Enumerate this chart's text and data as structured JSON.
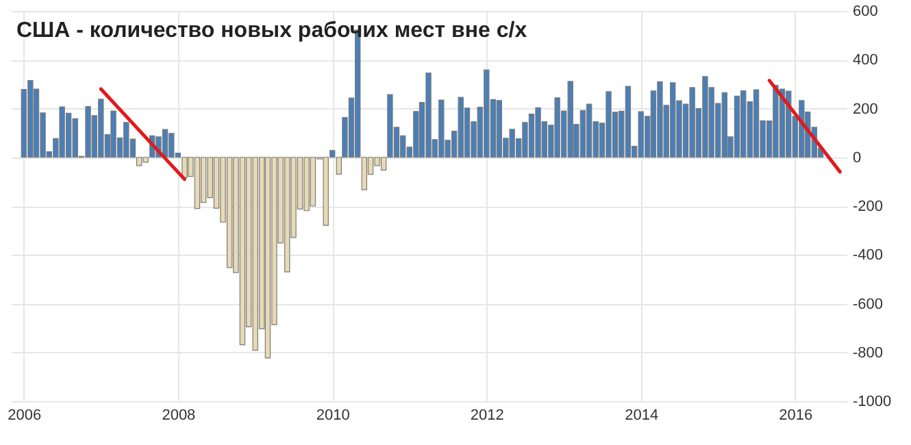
{
  "chart_data": {
    "type": "bar",
    "title": "США - количество новых рабочих мест вне с/х",
    "x": [
      "2006-01",
      "2006-02",
      "2006-03",
      "2006-04",
      "2006-05",
      "2006-06",
      "2006-07",
      "2006-08",
      "2006-09",
      "2006-10",
      "2006-11",
      "2006-12",
      "2007-01",
      "2007-02",
      "2007-03",
      "2007-04",
      "2007-05",
      "2007-06",
      "2007-07",
      "2007-08",
      "2007-09",
      "2007-10",
      "2007-11",
      "2007-12",
      "2008-01",
      "2008-02",
      "2008-03",
      "2008-04",
      "2008-05",
      "2008-06",
      "2008-07",
      "2008-08",
      "2008-09",
      "2008-10",
      "2008-11",
      "2008-12",
      "2009-01",
      "2009-02",
      "2009-03",
      "2009-04",
      "2009-05",
      "2009-06",
      "2009-07",
      "2009-08",
      "2009-09",
      "2009-10",
      "2009-11",
      "2009-12",
      "2010-01",
      "2010-02",
      "2010-03",
      "2010-04",
      "2010-05",
      "2010-06",
      "2010-07",
      "2010-08",
      "2010-09",
      "2010-10",
      "2010-11",
      "2010-12",
      "2011-01",
      "2011-02",
      "2011-03",
      "2011-04",
      "2011-05",
      "2011-06",
      "2011-07",
      "2011-08",
      "2011-09",
      "2011-10",
      "2011-11",
      "2011-12",
      "2012-01",
      "2012-02",
      "2012-03",
      "2012-04",
      "2012-05",
      "2012-06",
      "2012-07",
      "2012-08",
      "2012-09",
      "2012-10",
      "2012-11",
      "2012-12",
      "2013-01",
      "2013-02",
      "2013-03",
      "2013-04",
      "2013-05",
      "2013-06",
      "2013-07",
      "2013-08",
      "2013-09",
      "2013-10",
      "2013-11",
      "2013-12",
      "2014-01",
      "2014-02",
      "2014-03",
      "2014-04",
      "2014-05",
      "2014-06",
      "2014-07",
      "2014-08",
      "2014-09",
      "2014-10",
      "2014-11",
      "2014-12",
      "2015-01",
      "2015-02",
      "2015-03",
      "2015-04",
      "2015-05",
      "2015-06",
      "2015-07",
      "2015-08",
      "2015-09",
      "2015-10",
      "2015-11",
      "2015-12",
      "2016-01",
      "2016-02",
      "2016-03",
      "2016-04",
      "2016-05"
    ],
    "series": [
      {
        "values": [
          278,
          315,
          280,
          182,
          23,
          77,
          207,
          181,
          158,
          4,
          208,
          171,
          238,
          93,
          190,
          80,
          143,
          75,
          -34,
          -20,
          88,
          84,
          114,
          98,
          17,
          -84,
          -78,
          -210,
          -185,
          -165,
          -209,
          -266,
          -452,
          -473,
          -769,
          -695,
          -791,
          -703,
          -823,
          -686,
          -351,
          -470,
          -329,
          -212,
          -219,
          -200,
          -7,
          -279,
          28,
          -69,
          163,
          243,
          522,
          -133,
          -70,
          -34,
          -52,
          257,
          123,
          88,
          42,
          188,
          225,
          346,
          73,
          235,
          70,
          107,
          246,
          202,
          146,
          205,
          358,
          237,
          233,
          78,
          115,
          76,
          143,
          177,
          203,
          146,
          132,
          244,
          190,
          311,
          135,
          192,
          218,
          146,
          140,
          269,
          185,
          189,
          291,
          45,
          187,
          168,
          272,
          310,
          213,
          306,
          232,
          218,
          286,
          200,
          331,
          286,
          221,
          265,
          84,
          251,
          273,
          228,
          277,
          150,
          149,
          295,
          280,
          271,
          168,
          233,
          186,
          123,
          38
        ],
        "colors": [
          "#4a7fb8",
          "#4a7fb8",
          "#4a7fb8",
          "#4a7fb8",
          "#4a7fb8",
          "#4a7fb8",
          "#4a7fb8",
          "#4a7fb8",
          "#4a7fb8",
          "#4a7fb8",
          "#4a7fb8",
          "#4a7fb8",
          "#4a7fb8",
          "#4a7fb8",
          "#4a7fb8",
          "#4a7fb8",
          "#4a7fb8",
          "#4a7fb8",
          "#e8dab4",
          "#e8dab4",
          "#4a7fb8",
          "#4a7fb8",
          "#4a7fb8",
          "#4a7fb8",
          "#4a7fb8",
          "#e8dab4",
          "#e8dab4",
          "#e8dab4",
          "#e8dab4",
          "#e8dab4",
          "#e8dab4",
          "#e8dab4",
          "#e8dab4",
          "#e8dab4",
          "#e8dab4",
          "#e8dab4",
          "#e8dab4",
          "#e8dab4",
          "#e8dab4",
          "#e8dab4",
          "#e8dab4",
          "#e8dab4",
          "#e8dab4",
          "#e8dab4",
          "#e8dab4",
          "#e8dab4",
          "#e8dab4",
          "#e8dab4",
          "#4a7fb8",
          "#e8dab4",
          "#4a7fb8",
          "#4a7fb8",
          "#4a7fb8",
          "#e8dab4",
          "#e8dab4",
          "#e8dab4",
          "#e8dab4",
          "#4a7fb8",
          "#4a7fb8",
          "#4a7fb8",
          "#4a7fb8",
          "#4a7fb8",
          "#4a7fb8",
          "#4a7fb8",
          "#4a7fb8",
          "#4a7fb8",
          "#4a7fb8",
          "#4a7fb8",
          "#4a7fb8",
          "#4a7fb8",
          "#4a7fb8",
          "#4a7fb8",
          "#4a7fb8",
          "#4a7fb8",
          "#4a7fb8",
          "#4a7fb8",
          "#4a7fb8",
          "#4a7fb8",
          "#4a7fb8",
          "#4a7fb8",
          "#4a7fb8",
          "#4a7fb8",
          "#4a7fb8",
          "#4a7fb8",
          "#4a7fb8",
          "#4a7fb8",
          "#4a7fb8",
          "#4a7fb8",
          "#4a7fb8",
          "#4a7fb8",
          "#4a7fb8",
          "#4a7fb8",
          "#4a7fb8",
          "#4a7fb8",
          "#4a7fb8",
          "#4a7fb8",
          "#4a7fb8",
          "#4a7fb8",
          "#4a7fb8",
          "#4a7fb8",
          "#4a7fb8",
          "#4a7fb8",
          "#4a7fb8",
          "#4a7fb8",
          "#4a7fb8",
          "#4a7fb8",
          "#4a7fb8",
          "#4a7fb8",
          "#4a7fb8",
          "#4a7fb8",
          "#4a7fb8",
          "#4a7fb8",
          "#4a7fb8",
          "#4a7fb8",
          "#4a7fb8",
          "#4a7fb8",
          "#4a7fb8",
          "#4a7fb8",
          "#4a7fb8",
          "#4a7fb8",
          "#4a7fb8",
          "#4a7fb8",
          "#4a7fb8",
          "#4a7fb8",
          "#4a7fb8"
        ]
      },
      {
        "type": "line",
        "color": "#e3191c",
        "x": [
          "2007-01",
          "2008-02"
        ],
        "values": [
          280,
          -90
        ]
      },
      {
        "type": "line",
        "color": "#e3191c",
        "x": [
          "2015-09",
          "2016-08"
        ],
        "values": [
          315,
          -60
        ]
      }
    ],
    "xlim": [
      "2005-11",
      "2016-09"
    ],
    "xticks": [
      "2006",
      "2008",
      "2010",
      "2012",
      "2014",
      "2016"
    ],
    "ylim": [
      -1000,
      600
    ],
    "yticks": [
      -1000,
      -800,
      -600,
      -400,
      -200,
      0,
      200,
      400,
      600
    ],
    "grid": true
  }
}
